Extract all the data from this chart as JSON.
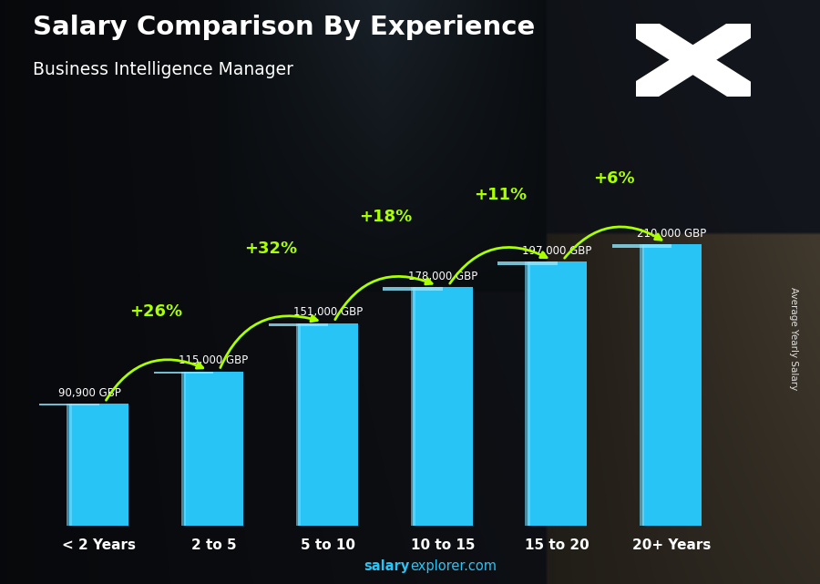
{
  "title": "Salary Comparison By Experience",
  "subtitle": "Business Intelligence Manager",
  "categories": [
    "< 2 Years",
    "2 to 5",
    "5 to 10",
    "10 to 15",
    "15 to 20",
    "20+ Years"
  ],
  "values": [
    90900,
    115000,
    151000,
    178000,
    197000,
    210000
  ],
  "value_labels": [
    "90,900 GBP",
    "115,000 GBP",
    "151,000 GBP",
    "178,000 GBP",
    "197,000 GBP",
    "210,000 GBP"
  ],
  "pct_changes": [
    "+26%",
    "+32%",
    "+18%",
    "+11%",
    "+6%"
  ],
  "bar_color": "#29C4F6",
  "pct_color": "#AAFF00",
  "label_color": "#FFFFFF",
  "title_color": "#FFFFFF",
  "subtitle_color": "#FFFFFF",
  "ylabel": "Average Yearly Salary",
  "footer_normal": "explorer.com",
  "footer_bold": "salary",
  "ylim": [
    0,
    270000
  ],
  "bar_width": 0.52,
  "flag_blue": "#3355BB",
  "bg_dark": "#1a1f2e"
}
